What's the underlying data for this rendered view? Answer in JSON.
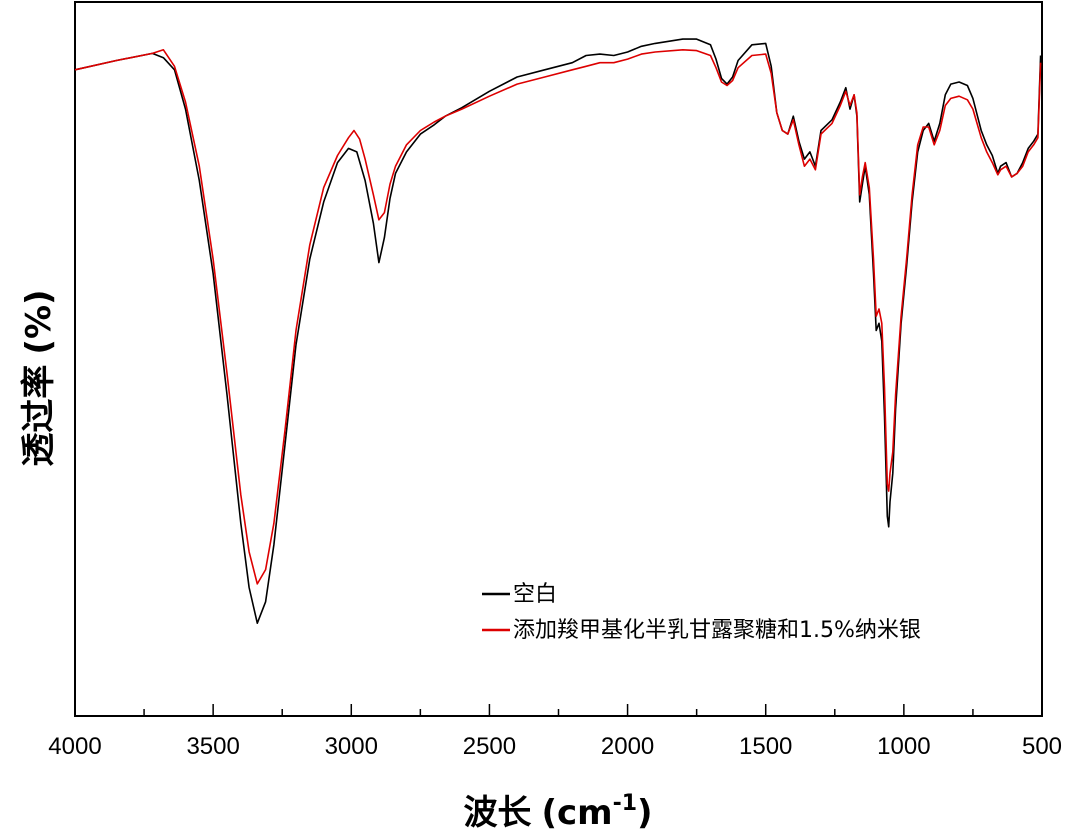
{
  "chart_data": {
    "type": "line",
    "title": "",
    "xlabel": "波长",
    "xlabel_unit_base": "(cm",
    "xlabel_unit_exp": "-1",
    "xlabel_unit_close": ")",
    "ylabel": "透过率",
    "ylabel_unit": "(%)",
    "xlim": [
      4000,
      500
    ],
    "x_reversed": true,
    "x_ticks": [
      "4000",
      "3500",
      "3000",
      "2500",
      "2000",
      "1500",
      "1000",
      "500"
    ],
    "y_ticks_shown": false,
    "ylim": [
      0,
      100
    ],
    "grid": false,
    "legend_position": "lower-right",
    "series": [
      {
        "name": "空白",
        "color": "#000000",
        "points": [
          [
            4000,
            90.5
          ],
          [
            3850,
            91.8
          ],
          [
            3720,
            92.8
          ],
          [
            3680,
            92.2
          ],
          [
            3640,
            90.5
          ],
          [
            3600,
            85
          ],
          [
            3550,
            75
          ],
          [
            3500,
            62
          ],
          [
            3450,
            45
          ],
          [
            3400,
            27
          ],
          [
            3370,
            18
          ],
          [
            3340,
            13
          ],
          [
            3310,
            16
          ],
          [
            3280,
            24
          ],
          [
            3240,
            38
          ],
          [
            3200,
            52
          ],
          [
            3150,
            64
          ],
          [
            3100,
            72
          ],
          [
            3050,
            77.5
          ],
          [
            3010,
            79.5
          ],
          [
            2980,
            79
          ],
          [
            2950,
            75
          ],
          [
            2920,
            69
          ],
          [
            2900,
            63.5
          ],
          [
            2880,
            67
          ],
          [
            2860,
            72.5
          ],
          [
            2840,
            76
          ],
          [
            2800,
            79
          ],
          [
            2750,
            81.5
          ],
          [
            2700,
            82.8
          ],
          [
            2660,
            84
          ],
          [
            2600,
            85.2
          ],
          [
            2500,
            87.5
          ],
          [
            2400,
            89.5
          ],
          [
            2300,
            90.5
          ],
          [
            2200,
            91.5
          ],
          [
            2150,
            92.5
          ],
          [
            2100,
            92.7
          ],
          [
            2050,
            92.5
          ],
          [
            2000,
            93
          ],
          [
            1950,
            93.8
          ],
          [
            1900,
            94.2
          ],
          [
            1800,
            94.8
          ],
          [
            1750,
            94.8
          ],
          [
            1700,
            94
          ],
          [
            1680,
            92
          ],
          [
            1660,
            89.3
          ],
          [
            1640,
            88.5
          ],
          [
            1620,
            89.5
          ],
          [
            1600,
            91.8
          ],
          [
            1550,
            94
          ],
          [
            1500,
            94.2
          ],
          [
            1480,
            91
          ],
          [
            1460,
            84.5
          ],
          [
            1440,
            82
          ],
          [
            1420,
            81.5
          ],
          [
            1400,
            84
          ],
          [
            1380,
            80.5
          ],
          [
            1360,
            78
          ],
          [
            1340,
            79
          ],
          [
            1320,
            77
          ],
          [
            1300,
            82
          ],
          [
            1260,
            83.5
          ],
          [
            1230,
            86
          ],
          [
            1210,
            88
          ],
          [
            1195,
            85
          ],
          [
            1180,
            87
          ],
          [
            1170,
            84
          ],
          [
            1160,
            72
          ],
          [
            1150,
            74.5
          ],
          [
            1140,
            77
          ],
          [
            1125,
            73
          ],
          [
            1110,
            62
          ],
          [
            1100,
            54
          ],
          [
            1090,
            55
          ],
          [
            1080,
            52.5
          ],
          [
            1070,
            42
          ],
          [
            1060,
            28
          ],
          [
            1055,
            26.5
          ],
          [
            1050,
            30
          ],
          [
            1040,
            34
          ],
          [
            1030,
            43
          ],
          [
            1010,
            55
          ],
          [
            990,
            63
          ],
          [
            970,
            72
          ],
          [
            950,
            79
          ],
          [
            930,
            82
          ],
          [
            910,
            83
          ],
          [
            890,
            80.5
          ],
          [
            870,
            83
          ],
          [
            850,
            87
          ],
          [
            830,
            88.5
          ],
          [
            800,
            88.8
          ],
          [
            770,
            88.3
          ],
          [
            750,
            86.5
          ],
          [
            720,
            82
          ],
          [
            700,
            80
          ],
          [
            680,
            78.5
          ],
          [
            660,
            76
          ],
          [
            650,
            77
          ],
          [
            630,
            77.5
          ],
          [
            610,
            75.5
          ],
          [
            590,
            76
          ],
          [
            570,
            77.5
          ],
          [
            550,
            79.5
          ],
          [
            530,
            80.5
          ],
          [
            515,
            81.5
          ],
          [
            505,
            92.5
          ]
        ]
      },
      {
        "name": "添加羧甲基化半乳甘露聚糖和1.5%纳米银",
        "color": "#dd0000",
        "points": [
          [
            4000,
            90.5
          ],
          [
            3850,
            91.8
          ],
          [
            3720,
            92.8
          ],
          [
            3680,
            93.3
          ],
          [
            3640,
            91
          ],
          [
            3600,
            86
          ],
          [
            3550,
            77
          ],
          [
            3500,
            64
          ],
          [
            3450,
            48
          ],
          [
            3400,
            31
          ],
          [
            3370,
            23
          ],
          [
            3340,
            18.5
          ],
          [
            3310,
            20.5
          ],
          [
            3280,
            27
          ],
          [
            3240,
            40
          ],
          [
            3200,
            54
          ],
          [
            3150,
            66
          ],
          [
            3100,
            74
          ],
          [
            3050,
            78.5
          ],
          [
            3010,
            81
          ],
          [
            2990,
            82
          ],
          [
            2970,
            80.8
          ],
          [
            2950,
            78
          ],
          [
            2920,
            73
          ],
          [
            2900,
            69.5
          ],
          [
            2880,
            70.5
          ],
          [
            2860,
            74.5
          ],
          [
            2840,
            77
          ],
          [
            2800,
            80
          ],
          [
            2750,
            82
          ],
          [
            2700,
            83.2
          ],
          [
            2660,
            84
          ],
          [
            2600,
            85
          ],
          [
            2500,
            86.8
          ],
          [
            2400,
            88.5
          ],
          [
            2300,
            89.5
          ],
          [
            2200,
            90.5
          ],
          [
            2150,
            91
          ],
          [
            2100,
            91.5
          ],
          [
            2050,
            91.5
          ],
          [
            2000,
            92
          ],
          [
            1950,
            92.7
          ],
          [
            1900,
            93
          ],
          [
            1800,
            93.3
          ],
          [
            1750,
            93.2
          ],
          [
            1700,
            92.5
          ],
          [
            1680,
            90.8
          ],
          [
            1660,
            88.8
          ],
          [
            1640,
            88.3
          ],
          [
            1620,
            89
          ],
          [
            1600,
            90.8
          ],
          [
            1550,
            92.5
          ],
          [
            1500,
            92.7
          ],
          [
            1480,
            90
          ],
          [
            1460,
            84.5
          ],
          [
            1440,
            82
          ],
          [
            1420,
            81.5
          ],
          [
            1400,
            83.5
          ],
          [
            1380,
            80
          ],
          [
            1360,
            77
          ],
          [
            1340,
            78
          ],
          [
            1320,
            76.5
          ],
          [
            1300,
            81.5
          ],
          [
            1260,
            83
          ],
          [
            1230,
            85.5
          ],
          [
            1210,
            87.5
          ],
          [
            1195,
            85.5
          ],
          [
            1180,
            87
          ],
          [
            1170,
            84.5
          ],
          [
            1160,
            73
          ],
          [
            1150,
            75.5
          ],
          [
            1140,
            77.5
          ],
          [
            1125,
            74
          ],
          [
            1110,
            64
          ],
          [
            1100,
            56
          ],
          [
            1090,
            57
          ],
          [
            1080,
            55
          ],
          [
            1070,
            46
          ],
          [
            1060,
            32.5
          ],
          [
            1055,
            31.5
          ],
          [
            1050,
            34
          ],
          [
            1040,
            37
          ],
          [
            1030,
            45
          ],
          [
            1010,
            56
          ],
          [
            990,
            64
          ],
          [
            970,
            73
          ],
          [
            950,
            80
          ],
          [
            930,
            82.5
          ],
          [
            910,
            82.5
          ],
          [
            890,
            80
          ],
          [
            870,
            82
          ],
          [
            850,
            85.5
          ],
          [
            830,
            86.5
          ],
          [
            800,
            86.8
          ],
          [
            770,
            86.3
          ],
          [
            750,
            85
          ],
          [
            720,
            81
          ],
          [
            700,
            79
          ],
          [
            680,
            77.5
          ],
          [
            660,
            75.8
          ],
          [
            650,
            76.5
          ],
          [
            630,
            77
          ],
          [
            610,
            75.5
          ],
          [
            590,
            76
          ],
          [
            570,
            77
          ],
          [
            550,
            79
          ],
          [
            530,
            80
          ],
          [
            515,
            81
          ],
          [
            505,
            91.5
          ]
        ]
      }
    ]
  }
}
